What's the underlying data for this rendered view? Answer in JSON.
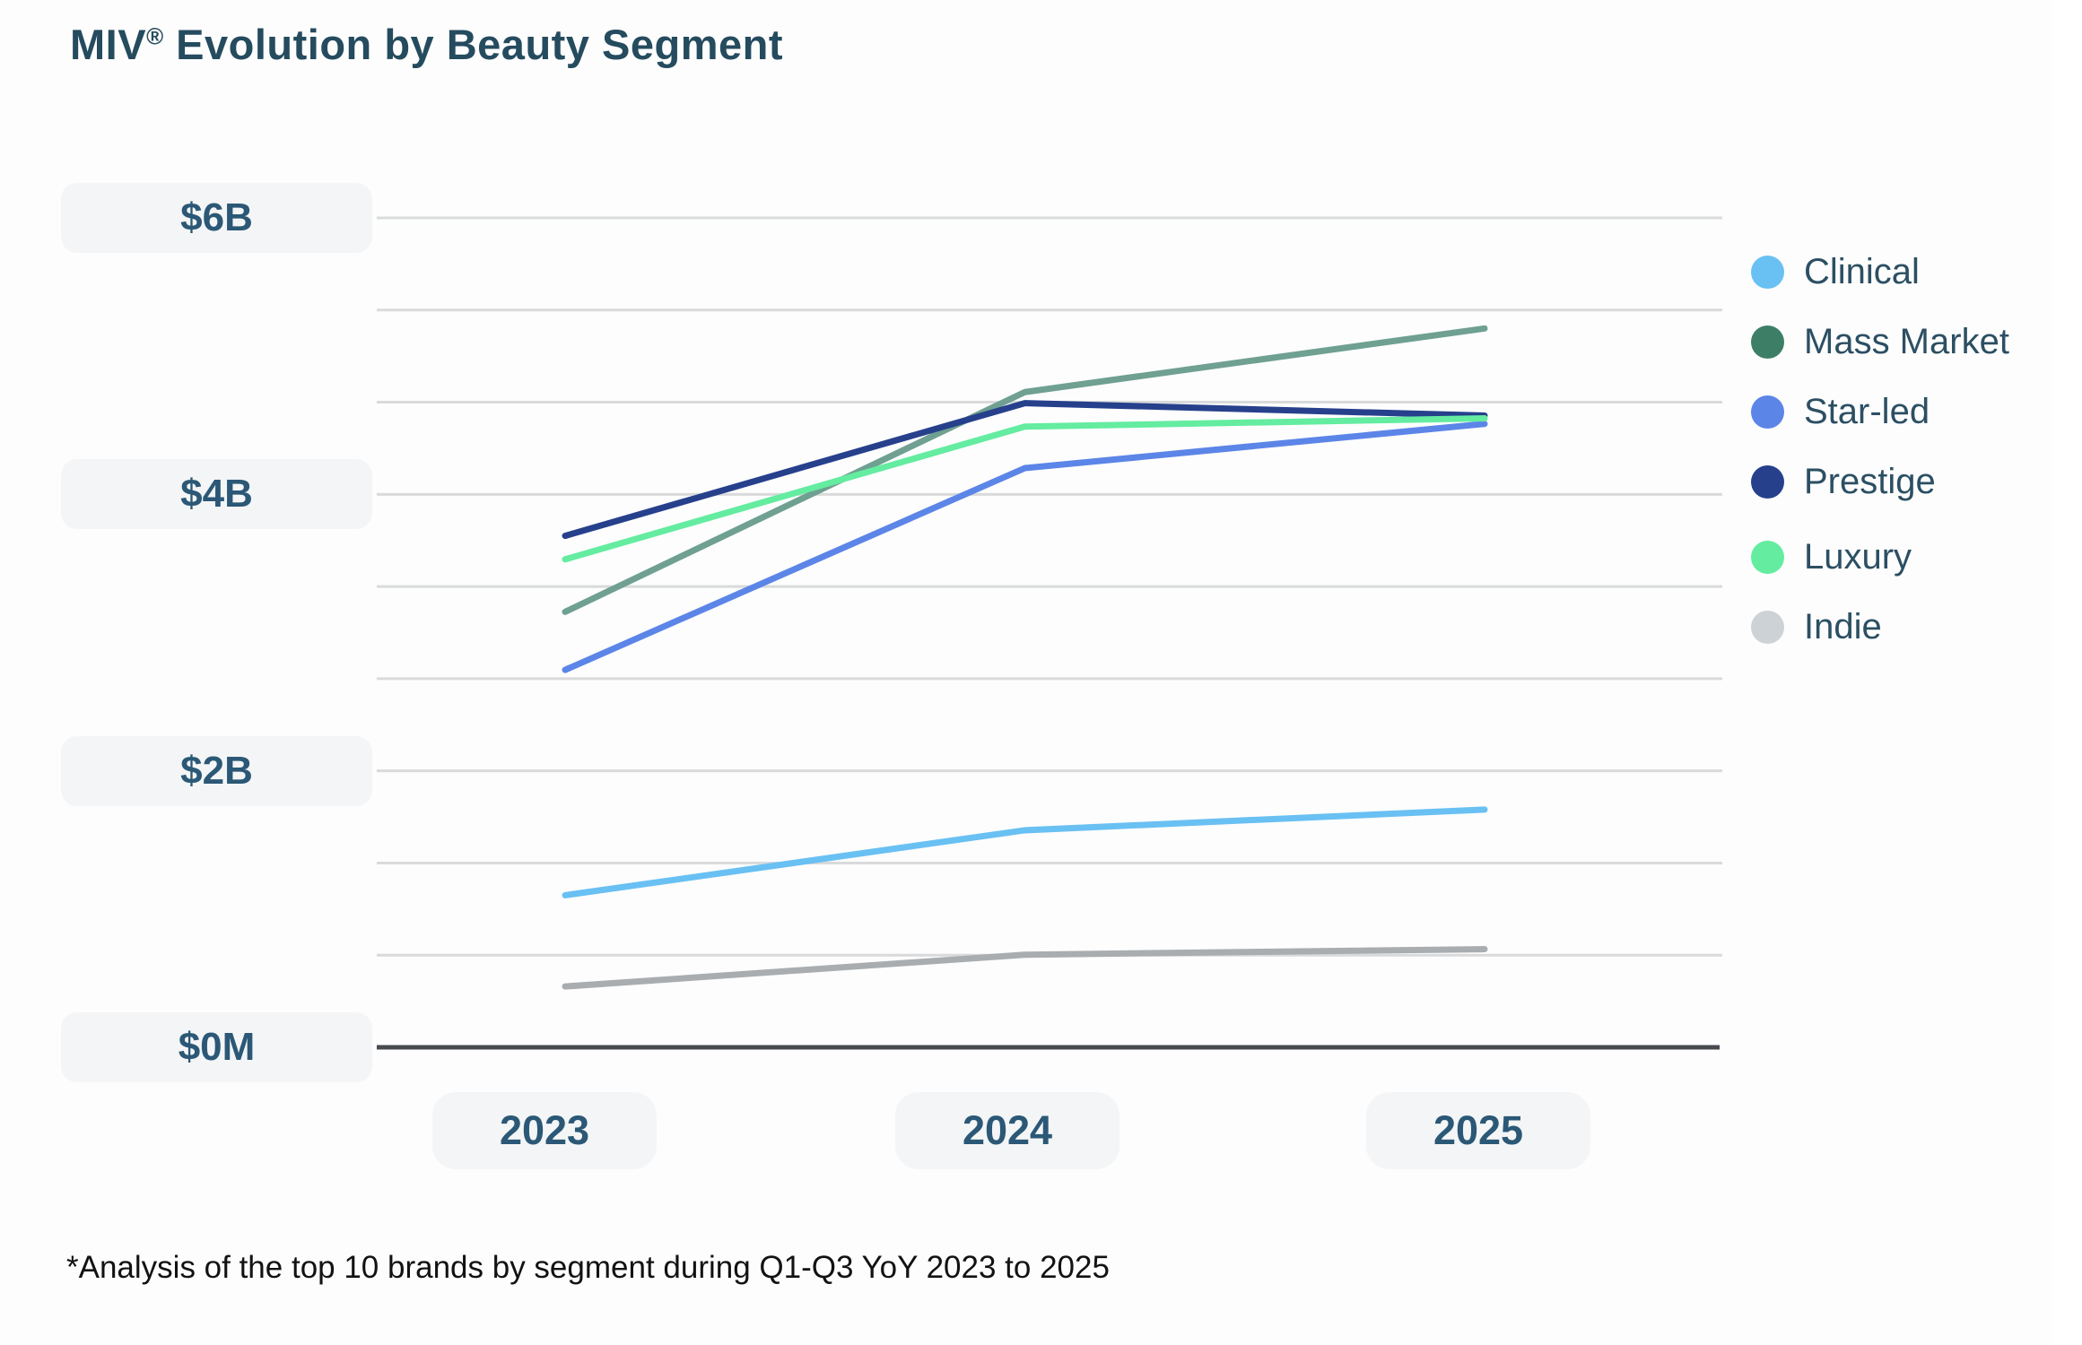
{
  "page": {
    "title_pre": "MIV",
    "title_sup": "®",
    "title_post": " Evolution by Beauty Segment",
    "footnote": "*Analysis of the top 10 brands by segment during Q1-Q3 YoY 2023 to 2025"
  },
  "colors": {
    "background": "#FDFDFD",
    "title_text": "#254B5E",
    "axis_label_text": "#2B5876",
    "legend_text": "#2C4F63",
    "pill_bg": "#F4F5F6",
    "gridline": "#D9DADB",
    "axis_line": "#474B4F"
  },
  "y_axis": {
    "labels": [
      "$6B",
      "$4B",
      "$2B",
      "$0M"
    ]
  },
  "x_axis": {
    "labels": [
      "2023",
      "2024",
      "2025"
    ]
  },
  "legend": {
    "position": "right",
    "items": [
      {
        "label": "Clinical",
        "color": "#69C0F3"
      },
      {
        "label": "Mass Market",
        "color": "#3D7F66"
      },
      {
        "label": "Star-led",
        "color": "#5C85E8"
      },
      {
        "label": "Prestige",
        "color": "#26408C"
      },
      {
        "label": "Luxury",
        "color": "#64ECA0"
      },
      {
        "label": "Indie",
        "color": "#CDD2D6"
      }
    ]
  },
  "chart_data": {
    "type": "line",
    "title": "MIV® Evolution by Beauty Segment",
    "categories": [
      "2023",
      "2024",
      "2025"
    ],
    "unit": "USD billions (MIV)",
    "series": [
      {
        "name": "Clinical",
        "color": "#69C0F3",
        "values": [
          1.1,
          1.57,
          1.72
        ]
      },
      {
        "name": "Mass Market",
        "color": "#6FA091",
        "values": [
          3.15,
          4.74,
          5.2
        ]
      },
      {
        "name": "Star-led",
        "color": "#5C85E8",
        "values": [
          2.73,
          4.19,
          4.51
        ]
      },
      {
        "name": "Prestige",
        "color": "#26408C",
        "values": [
          3.7,
          4.66,
          4.57
        ]
      },
      {
        "name": "Luxury",
        "color": "#64ECA0",
        "values": [
          3.53,
          4.49,
          4.55
        ]
      },
      {
        "name": "Indie",
        "color": "#A9ADB0",
        "values": [
          0.44,
          0.67,
          0.71
        ]
      }
    ],
    "ylim": [
      0,
      6
    ],
    "y_major_tick_labels": [
      "$6B",
      "$4B",
      "$2B",
      "$0M"
    ],
    "y_minor_divisions_per_major": 3,
    "grid": true,
    "legend_position": "right",
    "footnote": "*Analysis of the top 10 brands by segment during Q1-Q3 YoY 2023 to 2025"
  }
}
